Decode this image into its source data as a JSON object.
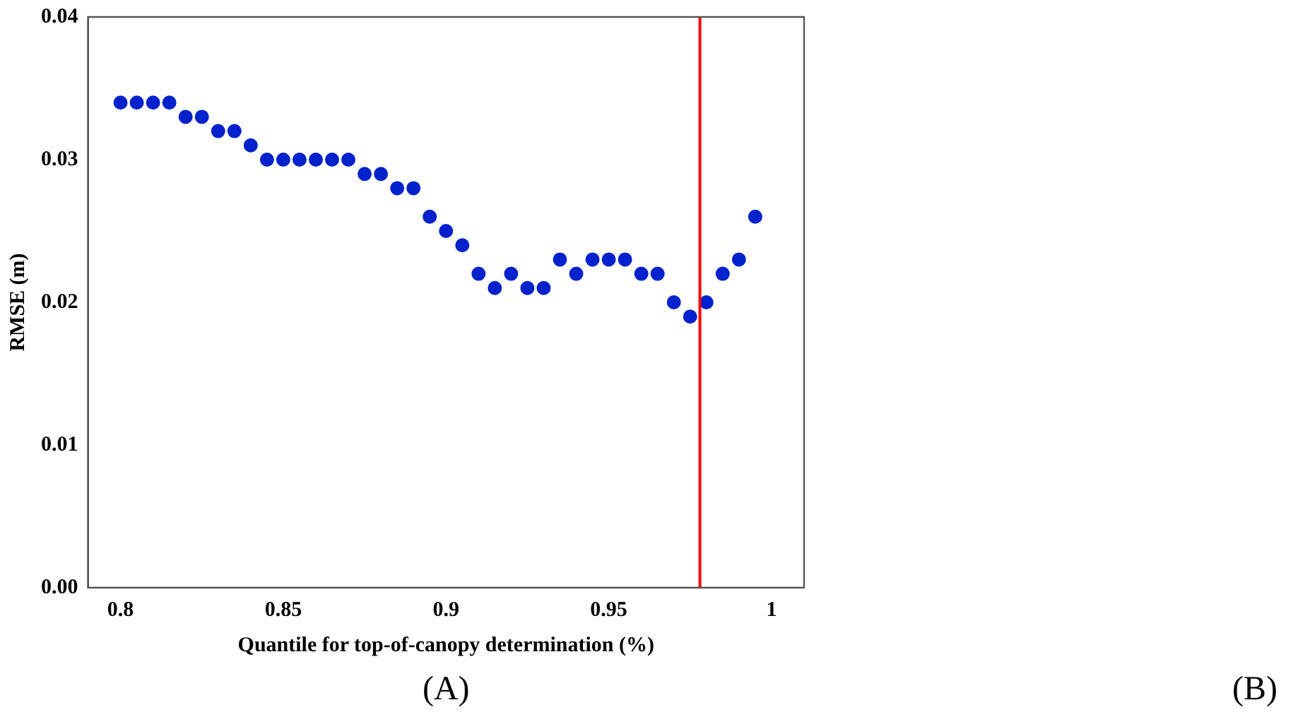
{
  "chart_data": {
    "type": "scatter",
    "xlabel": "Quantile for top-of-canopy determination (%)",
    "ylabel": "RMSE (m)",
    "x": [
      0.8,
      0.805,
      0.81,
      0.815,
      0.82,
      0.825,
      0.83,
      0.835,
      0.84,
      0.845,
      0.85,
      0.855,
      0.86,
      0.865,
      0.87,
      0.875,
      0.88,
      0.885,
      0.89,
      0.895,
      0.9,
      0.905,
      0.91,
      0.915,
      0.92,
      0.925,
      0.93,
      0.935,
      0.94,
      0.945,
      0.95,
      0.955,
      0.96,
      0.965,
      0.97,
      0.975,
      0.98,
      0.985,
      0.99,
      0.995
    ],
    "series": [
      {
        "color": "#0022cc",
        "values": [
          0.034,
          0.034,
          0.034,
          0.034,
          0.033,
          0.033,
          0.032,
          0.032,
          0.031,
          0.03,
          0.03,
          0.03,
          0.03,
          0.03,
          0.03,
          0.029,
          0.029,
          0.028,
          0.028,
          0.026,
          0.025,
          0.024,
          0.022,
          0.021,
          0.022,
          0.021,
          0.021,
          0.023,
          0.022,
          0.023,
          0.023,
          0.023,
          0.022,
          0.022,
          0.02,
          0.019,
          0.02,
          0.022,
          0.023,
          0.026
        ]
      }
    ],
    "xlim": [
      0.79,
      1.01
    ],
    "xticks": [
      0.8,
      0.85,
      0.9,
      0.95,
      1
    ],
    "ylim": [
      0,
      0.04
    ],
    "yticks": [
      {
        "value": 0,
        "label": "0.00"
      },
      {
        "value": 0.01,
        "label": "0.01"
      },
      {
        "value": 0.02,
        "label": "0.02"
      },
      {
        "value": 0.03,
        "label": "0.03"
      },
      {
        "value": 0.04,
        "label": "0.04"
      }
    ],
    "ref_lines": [
      {
        "axis": "x",
        "value": 0.978,
        "color": "#ff0000"
      }
    ],
    "marker": "circle",
    "grid": false,
    "legend": false,
    "annotations": [
      "(A)",
      "(B)"
    ]
  }
}
